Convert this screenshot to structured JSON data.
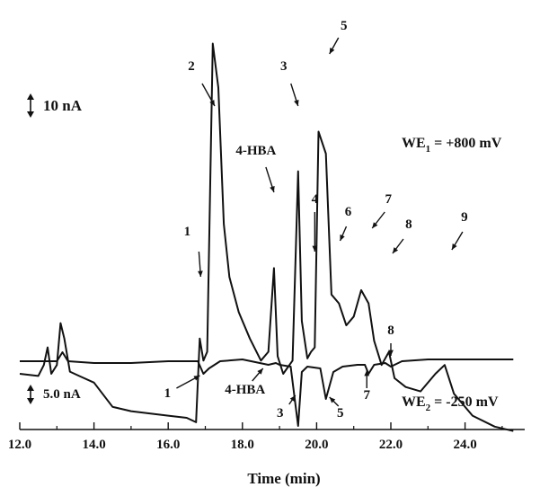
{
  "chart_data": {
    "type": "line",
    "xlabel": "Time (min)",
    "xlim": [
      12.0,
      25.4
    ],
    "x_ticks": [
      "12.0",
      "14.0",
      "16.0",
      "18.0",
      "20.0",
      "22.0",
      "24.0"
    ],
    "scale_bars": {
      "top": "10 nA",
      "bottom": "5.0 nA"
    },
    "series": [
      {
        "name": "WE1 = +800 mV",
        "channel_label": "WE",
        "channel_sub": "1",
        "channel_value": " = +800 mV",
        "x": [
          12.0,
          12.5,
          12.65,
          12.75,
          12.85,
          13.0,
          13.1,
          13.2,
          13.35,
          13.6,
          14.0,
          14.5,
          15.0,
          15.5,
          16.0,
          16.5,
          16.75,
          16.85,
          16.95,
          17.05,
          17.2,
          17.35,
          17.5,
          17.65,
          17.9,
          18.2,
          18.5,
          18.7,
          18.85,
          18.95,
          19.1,
          19.35,
          19.5,
          19.6,
          19.75,
          19.85,
          19.95,
          20.05,
          20.25,
          20.4,
          20.6,
          20.8,
          21.0,
          21.2,
          21.4,
          21.55,
          21.75,
          21.95,
          22.1,
          22.4,
          22.8,
          23.2,
          23.45,
          23.7,
          24.2,
          24.8,
          25.3
        ],
        "y": [
          -20.0,
          -20.5,
          -18.0,
          -14.0,
          -20.0,
          -18.0,
          -8.5,
          -12.0,
          -19.5,
          -20.5,
          -22.0,
          -27.5,
          -28.5,
          -29.0,
          -29.5,
          -30.0,
          -31.0,
          -12.0,
          -17.0,
          -15.0,
          55.0,
          45.0,
          14.0,
          2.0,
          -6.0,
          -12.0,
          -17.0,
          -15.0,
          4.0,
          -16.0,
          -20.0,
          -17.0,
          26.0,
          -8.0,
          -16.5,
          -15.0,
          -14.0,
          35.0,
          30.0,
          -2.0,
          -4.0,
          -9.0,
          -7.0,
          -1.0,
          -4.0,
          -12.5,
          -18.0,
          -15.0,
          -21.0,
          -23.0,
          -24.0,
          -20.0,
          -18.0,
          -24.5,
          -29.5,
          -32.0,
          -33.0
        ]
      },
      {
        "name": "WE2 = -250 mV",
        "channel_label": "WE",
        "channel_sub": "2",
        "channel_value": " = -250 mV",
        "x": [
          12.0,
          12.5,
          13.0,
          13.15,
          13.3,
          14.0,
          15.0,
          16.0,
          16.8,
          16.95,
          17.1,
          17.4,
          18.0,
          18.7,
          18.9,
          19.0,
          19.3,
          19.5,
          19.6,
          19.75,
          20.1,
          20.25,
          20.45,
          20.7,
          21.1,
          21.3,
          21.4,
          21.55,
          21.85,
          22.0,
          22.3,
          23.0,
          24.0,
          25.3
        ],
        "y": [
          0.0,
          0.0,
          0.0,
          2.5,
          0.0,
          -0.5,
          -0.5,
          0.0,
          0.0,
          -3.5,
          -2.0,
          0.0,
          0.5,
          -1.0,
          -0.5,
          -1.0,
          -1.5,
          -18.0,
          -3.0,
          -1.5,
          -2.0,
          -10.5,
          -3.0,
          -1.5,
          -1.0,
          -1.0,
          -3.5,
          -1.0,
          -0.5,
          -1.5,
          0.0,
          0.5,
          0.5,
          0.5
        ]
      }
    ],
    "annotations": [
      {
        "text": "1",
        "series": 0,
        "x": 16.9
      },
      {
        "text": "2",
        "series": 0,
        "x": 17.35
      },
      {
        "text": "3",
        "series": 0,
        "x": 19.5
      },
      {
        "text": "4-HBA",
        "series": 0,
        "x": 18.85
      },
      {
        "text": "4",
        "series": 0,
        "x": 19.95
      },
      {
        "text": "5",
        "series": 0,
        "x": 20.25
      },
      {
        "text": "6",
        "series": 0,
        "x": 20.85
      },
      {
        "text": "7",
        "series": 0,
        "x": 21.4
      },
      {
        "text": "8",
        "series": 0,
        "x": 21.95
      },
      {
        "text": "9",
        "series": 0,
        "x": 23.45
      },
      {
        "text": "1",
        "series": 1,
        "x": 16.95
      },
      {
        "text": "4-HBA",
        "series": 1,
        "x": 18.7
      },
      {
        "text": "3",
        "series": 1,
        "x": 19.5
      },
      {
        "text": "5",
        "series": 1,
        "x": 20.25
      },
      {
        "text": "7",
        "series": 1,
        "x": 21.4
      },
      {
        "text": "8",
        "series": 1,
        "x": 22.0
      }
    ]
  }
}
